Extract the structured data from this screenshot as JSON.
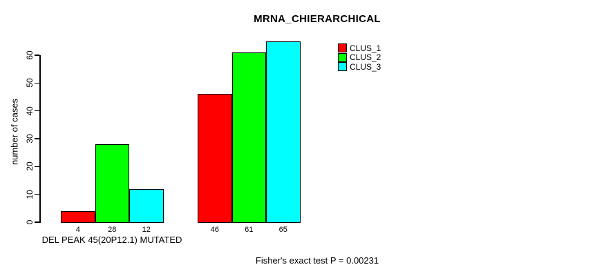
{
  "page": {
    "background_color": "#ffffff",
    "text_color": "#000000"
  },
  "chart_data": {
    "type": "bar",
    "title": "MRNA_CHIERARCHICAL",
    "ylabel": "number of cases",
    "xlabel": "DEL PEAK 45(20P12.1) MUTATED",
    "ylim": [
      0,
      65
    ],
    "yticks": [
      0,
      10,
      20,
      30,
      40,
      50,
      60
    ],
    "grid": false,
    "legend_position": "top-right",
    "bar_border_color": "#000000",
    "series": [
      {
        "name": "CLUS_1",
        "color": "#ff0000"
      },
      {
        "name": "CLUS_2",
        "color": "#00ff00"
      },
      {
        "name": "CLUS_3",
        "color": "#00ffff"
      }
    ],
    "groups": [
      {
        "label": "DEL PEAK 45(20P12.1) MUTATED",
        "values": [
          4,
          28,
          12
        ]
      },
      {
        "label": "",
        "values": [
          46,
          61,
          65
        ]
      }
    ],
    "annotation": "Fisher's exact test P = 0.00231"
  }
}
